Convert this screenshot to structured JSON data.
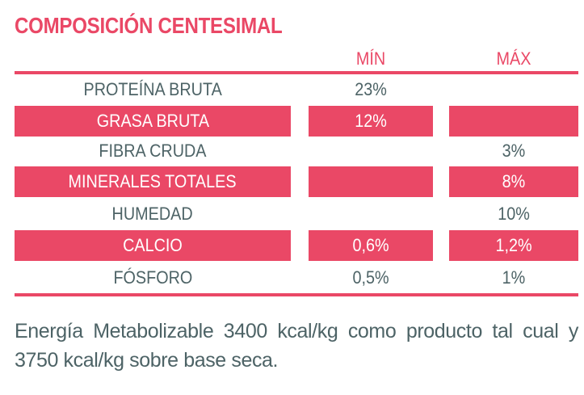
{
  "title": "COMPOSICIÓN CENTESIMAL",
  "columns": {
    "min": "MÍN",
    "max": "MÁX"
  },
  "rows": [
    {
      "name": "PROTEÍNA BRUTA",
      "min": "23%",
      "max": ""
    },
    {
      "name": "GRASA BRUTA",
      "min": "12%",
      "max": ""
    },
    {
      "name": "FIBRA CRUDA",
      "min": "",
      "max": "3%"
    },
    {
      "name": "MINERALES TOTALES",
      "min": "",
      "max": "8%"
    },
    {
      "name": "HUMEDAD",
      "min": "",
      "max": "10%"
    },
    {
      "name": "CALCIO",
      "min": "0,6%",
      "max": "1,2%"
    },
    {
      "name": "FÓSFORO",
      "min": "0,5%",
      "max": "1%"
    }
  ],
  "note": "Energía Metabolizable 3400 kcal/kg como producto tal cual y 3750 kcal/kg sobre base seca.",
  "colors": {
    "accent": "#ea4866",
    "text": "#4d6366",
    "background": "#ffffff"
  }
}
